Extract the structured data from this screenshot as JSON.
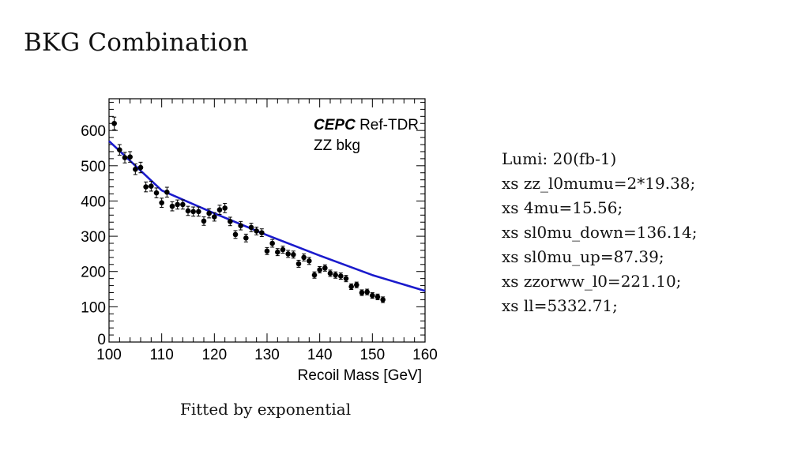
{
  "slide": {
    "title": "BKG Combination",
    "caption": "Fitted by exponential"
  },
  "info": {
    "lines": [
      "Lumi: 20(fb-1)",
      "xs zz_l0mumu=2*19.38;",
      "xs 4mu=15.56;",
      "xs sl0mu_down=136.14;",
      "xs sl0mu_up=87.39;",
      "xs zzorww_l0=221.10;",
      "xs ll=5332.71;"
    ]
  },
  "chart_data": {
    "type": "scatter",
    "title": "",
    "label_bold": "CEPC",
    "label_rest": "Ref-TDR",
    "sublabel": "ZZ bkg",
    "xlabel": "Recoil Mass [GeV]",
    "ylabel": "",
    "xlim": [
      100,
      160
    ],
    "ylim": [
      0,
      690
    ],
    "xticks": [
      100,
      110,
      120,
      130,
      140,
      150,
      160
    ],
    "yticks": [
      0,
      100,
      200,
      300,
      400,
      500,
      600
    ],
    "colors": {
      "points": "#000000",
      "fit": "#1a1acc"
    },
    "series": [
      {
        "name": "ZZ bkg",
        "x": [
          101,
          102,
          103,
          104,
          105,
          106,
          107,
          108,
          109,
          110,
          111,
          112,
          113,
          114,
          115,
          116,
          117,
          118,
          119,
          120,
          121,
          122,
          123,
          124,
          125,
          126,
          127,
          128,
          129,
          130,
          131,
          132,
          133,
          134,
          135,
          136,
          137,
          138,
          139,
          140,
          141,
          142,
          143,
          144,
          145,
          146,
          147,
          148,
          149,
          150,
          151,
          152,
          153,
          154,
          155,
          156,
          157,
          158,
          159
        ],
        "y": [
          620,
          545,
          523,
          525,
          490,
          495,
          440,
          442,
          423,
          395,
          425,
          385,
          390,
          390,
          372,
          370,
          370,
          343,
          365,
          355,
          375,
          380,
          342,
          305,
          330,
          295,
          325,
          315,
          310,
          258,
          280,
          255,
          262,
          250,
          248,
          222,
          240,
          230,
          190,
          205,
          210,
          195,
          190,
          187,
          180,
          157,
          162,
          140,
          142,
          132,
          128,
          120,
          null,
          null,
          null,
          null,
          null,
          null,
          null
        ],
        "yerr": [
          18,
          15,
          15,
          15,
          15,
          15,
          14,
          14,
          14,
          13,
          14,
          13,
          13,
          13,
          13,
          13,
          13,
          12,
          13,
          12,
          13,
          13,
          12,
          11,
          12,
          11,
          12,
          11,
          11,
          10,
          11,
          10,
          10,
          10,
          10,
          10,
          10,
          10,
          9,
          9,
          9,
          9,
          9,
          9,
          9,
          8,
          8,
          8,
          8,
          8,
          8,
          8,
          0,
          0,
          0,
          0,
          0,
          0,
          0
        ]
      }
    ],
    "fit": {
      "name": "exponential fit",
      "x": [
        100,
        110,
        120,
        130,
        140,
        150,
        160
      ],
      "y": [
        570,
        430,
        365,
        303,
        245,
        190,
        145
      ]
    }
  }
}
